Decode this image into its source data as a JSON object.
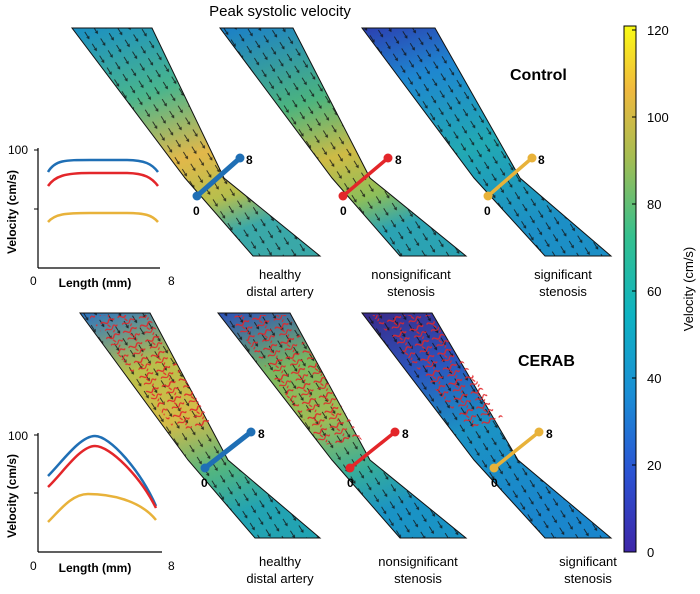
{
  "figure": {
    "title": "Peak systolic velocity",
    "rows": [
      {
        "label": "Control",
        "inset": {
          "ylabel": "Velocity (cm/s)",
          "xlabel": "Length (mm)",
          "ytick": "100",
          "xtick_min": "0",
          "xtick_max": "8"
        },
        "panels": [
          {
            "caption_line1": "healthy",
            "caption_line2": "distal artery",
            "start_label": "0",
            "end_label": "8",
            "line_color": "#1f6fb5"
          },
          {
            "caption_line1": "nonsignificant",
            "caption_line2": "stenosis",
            "start_label": "0",
            "end_label": "8",
            "line_color": "#e3262a"
          },
          {
            "caption_line1": "significant",
            "caption_line2": "stenosis",
            "start_label": "0",
            "end_label": "8",
            "line_color": "#e8b23a"
          }
        ]
      },
      {
        "label": "CERAB",
        "inset": {
          "ylabel": "Velocity (cm/s)",
          "xlabel": "Length (mm)",
          "ytick": "100",
          "xtick_min": "0",
          "xtick_max": "8"
        },
        "panels": [
          {
            "caption_line1": "healthy",
            "caption_line2": "distal artery",
            "start_label": "0",
            "end_label": "8",
            "line_color": "#1f6fb5"
          },
          {
            "caption_line1": "nonsignificant",
            "caption_line2": "stenosis",
            "start_label": "0",
            "end_label": "8",
            "line_color": "#e3262a"
          },
          {
            "caption_line1": "significant",
            "caption_line2": "stenosis",
            "start_label": "0",
            "end_label": "8",
            "line_color": "#e8b23a"
          }
        ]
      }
    ],
    "colorbar": {
      "label": "Velocity (cm/s)",
      "ticks": [
        "0",
        "20",
        "40",
        "60",
        "80",
        "100",
        "120"
      ],
      "min": 0,
      "max": 120
    }
  }
}
